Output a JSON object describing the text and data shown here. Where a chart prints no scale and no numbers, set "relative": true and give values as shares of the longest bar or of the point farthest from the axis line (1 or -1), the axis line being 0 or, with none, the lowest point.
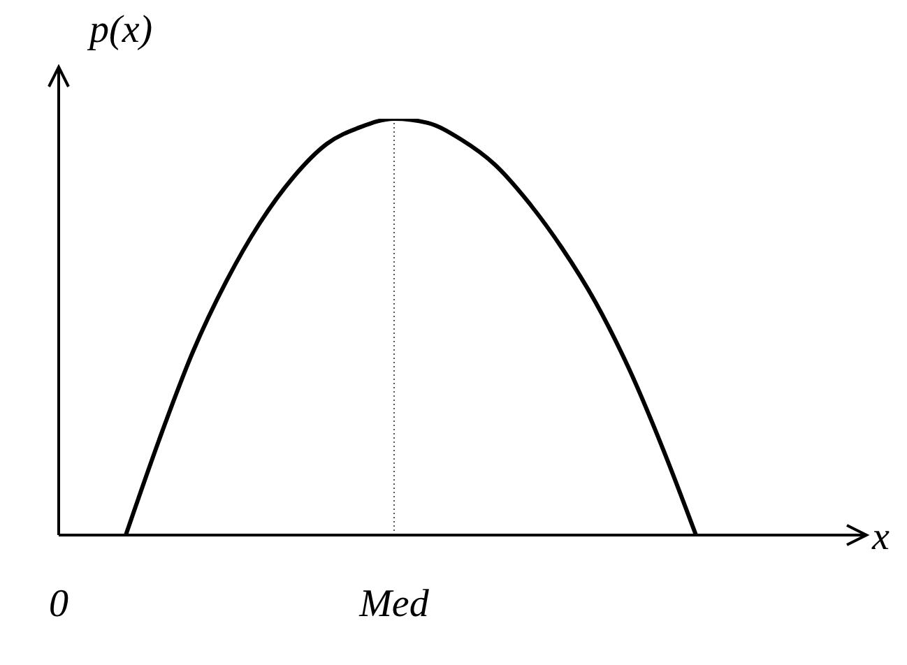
{
  "chart_data": {
    "type": "line",
    "relative": true,
    "xlabel": "x",
    "ylabel": "p(x)",
    "categories": [
      "0",
      null,
      null,
      null,
      null,
      null,
      null,
      null,
      null,
      null,
      "Med",
      null,
      null,
      null,
      null,
      null,
      null,
      null,
      null,
      null,
      null,
      null,
      null,
      null,
      null
    ],
    "series": [
      {
        "color": "#000000",
        "values": [
          null,
          null,
          0,
          0.23,
          0.44,
          0.61,
          0.75,
          0.86,
          0.94,
          0.98,
          1,
          0.99,
          0.95,
          0.89,
          0.8,
          0.69,
          0.56,
          0.4,
          0.21,
          0,
          null,
          null,
          null,
          null,
          null
        ]
      }
    ],
    "ref_lines": [
      {
        "axis": "x",
        "value": "Med",
        "line_style": "dotted",
        "color": "#555555"
      }
    ],
    "grid": false,
    "legend": false,
    "marker": "none",
    "line_style": "solid"
  }
}
